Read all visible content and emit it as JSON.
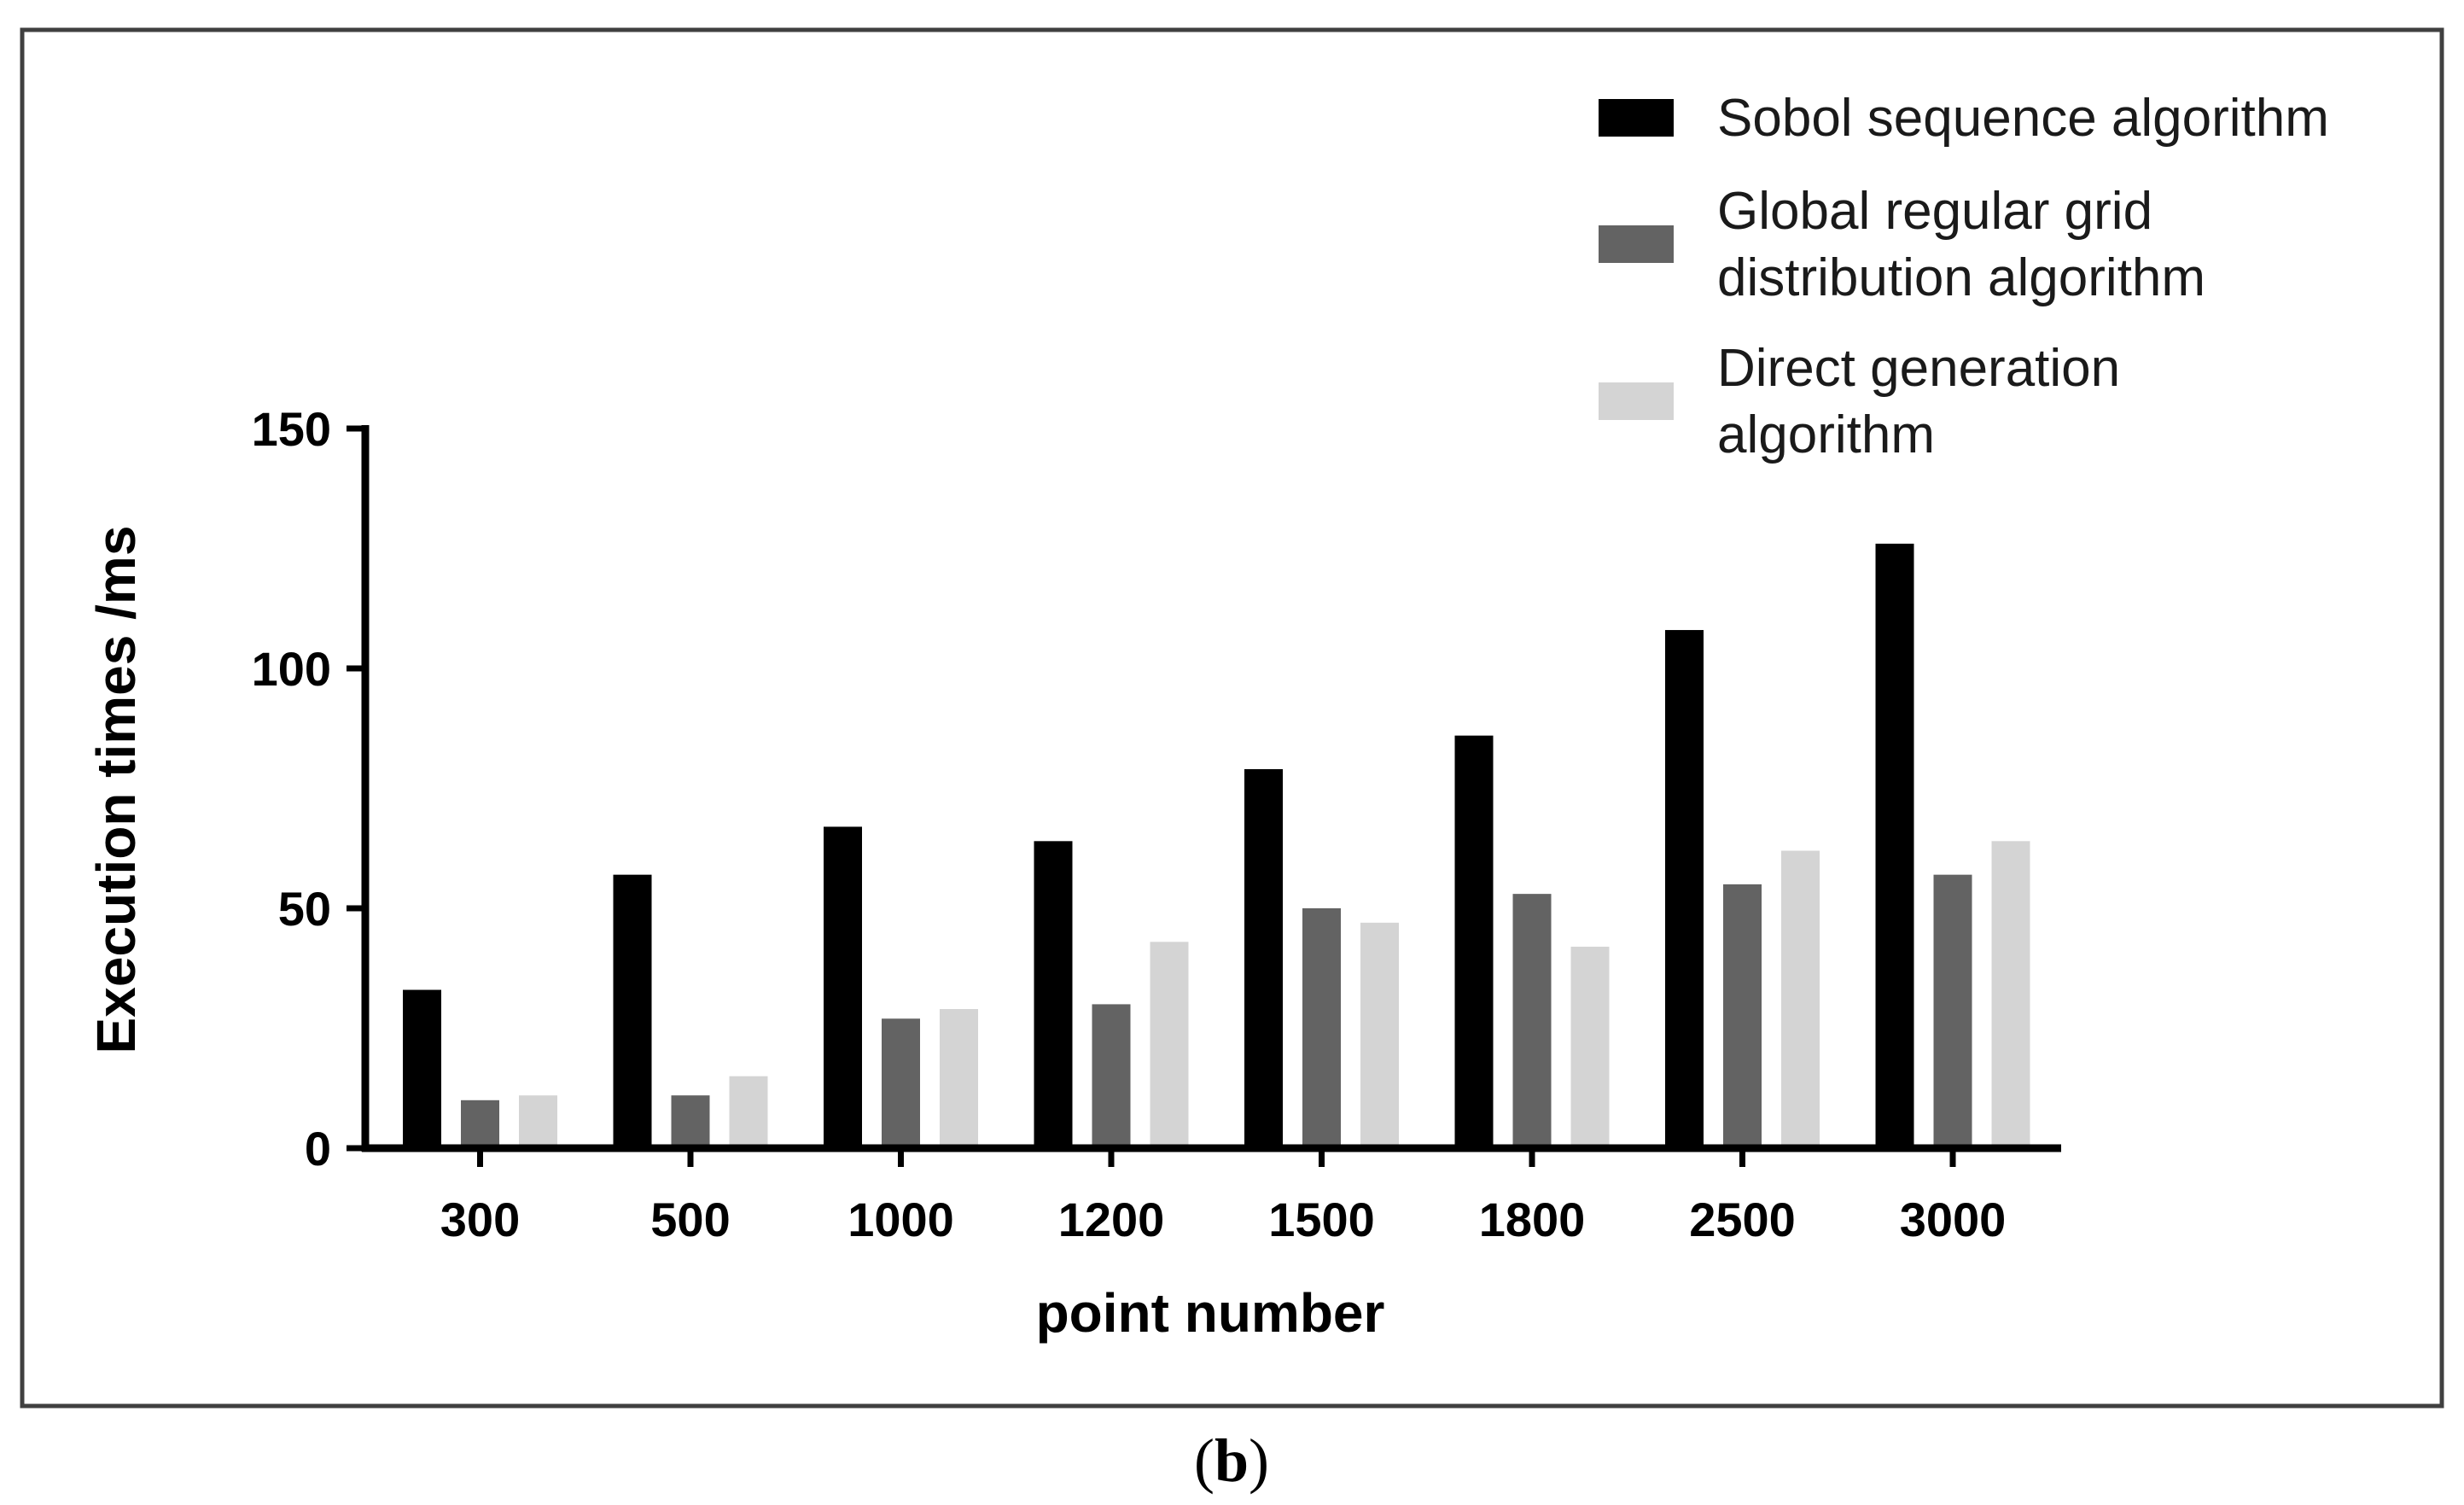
{
  "panel_label": {
    "open": "(",
    "letter": "b",
    "close": ")"
  },
  "chart_data": {
    "type": "bar",
    "xlabel": "point number",
    "ylabel": "Execution  times /ms",
    "ylim": [
      0,
      150
    ],
    "yticks": [
      0,
      50,
      100,
      150
    ],
    "categories": [
      "300",
      "500",
      "1000",
      "1200",
      "1500",
      "1800",
      "2500",
      "3000"
    ],
    "series": [
      {
        "name": [
          "Sobol sequence algorithm"
        ],
        "color": "#000000",
        "values": [
          33,
          57,
          67,
          64,
          79,
          86,
          108,
          126
        ]
      },
      {
        "name": [
          "Global regular grid",
          "distribution algorithm"
        ],
        "color": "#636363",
        "values": [
          10,
          11,
          27,
          30,
          50,
          53,
          55,
          57
        ]
      },
      {
        "name": [
          "Direct generation",
          "algorithm"
        ],
        "color": "#d4d4d4",
        "values": [
          11,
          15,
          29,
          43,
          47,
          42,
          62,
          64
        ]
      }
    ],
    "legend_position": "top-right",
    "grid": false
  }
}
